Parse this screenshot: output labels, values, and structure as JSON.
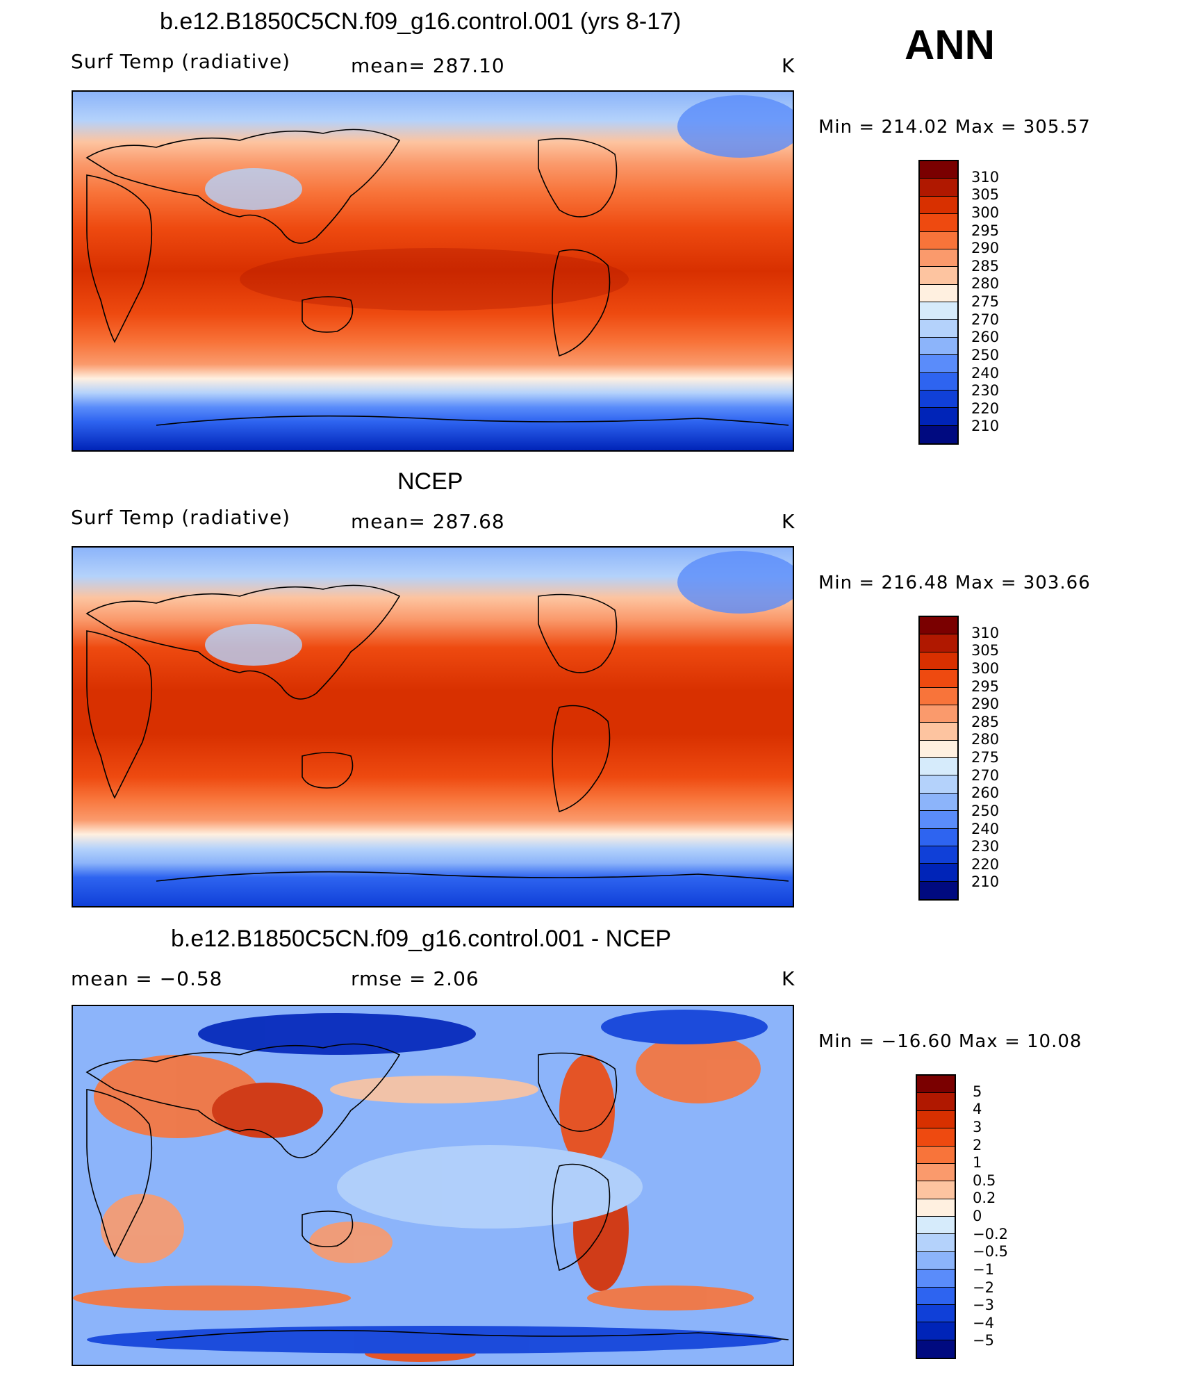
{
  "season": "ANN",
  "units": "K",
  "panels": [
    {
      "title": "b.e12.B1850C5CN.f09_g16.control.001 (yrs 8-17)",
      "left_label": "Surf Temp (radiative)",
      "middle_label": "mean= 287.10",
      "min_max": "Min = 214.02 Max = 305.57",
      "colorbar": "absolute"
    },
    {
      "title": "NCEP",
      "left_label": "Surf Temp (radiative)",
      "middle_label": "mean= 287.68",
      "min_max": "Min = 216.48 Max = 303.66",
      "colorbar": "absolute"
    },
    {
      "title": "b.e12.B1850C5CN.f09_g16.control.001 - NCEP",
      "left_label": "mean = −0.58",
      "middle_label": "rmse = 2.06",
      "min_max": "Min = −16.60 Max = 10.08",
      "colorbar": "difference"
    }
  ],
  "colorbars": {
    "absolute": {
      "labels": [
        "310",
        "305",
        "300",
        "295",
        "290",
        "285",
        "280",
        "275",
        "270",
        "260",
        "250",
        "240",
        "230",
        "220",
        "210"
      ],
      "colors": [
        "#7a0000",
        "#b01800",
        "#d83000",
        "#ee4a10",
        "#f8743a",
        "#fa9a6c",
        "#fdc4a0",
        "#fff0e0",
        "#d6ebfb",
        "#b4d2fb",
        "#8cb4fa",
        "#5a8cfa",
        "#2e64f0",
        "#1040d8",
        "#0024b8",
        "#000a80"
      ]
    },
    "difference": {
      "labels": [
        "5",
        "4",
        "3",
        "2",
        "1",
        "0.5",
        "0.2",
        "0",
        "−0.2",
        "−0.5",
        "−1",
        "−2",
        "−3",
        "−4",
        "−5"
      ],
      "colors": [
        "#7a0000",
        "#b01800",
        "#d83000",
        "#ee4a10",
        "#f8743a",
        "#fa9a6c",
        "#fdc4a0",
        "#fff0e0",
        "#d6ebfb",
        "#b4d2fb",
        "#8cb4fa",
        "#5a8cfa",
        "#2e64f0",
        "#1040d8",
        "#0024b8",
        "#000a80"
      ]
    }
  }
}
